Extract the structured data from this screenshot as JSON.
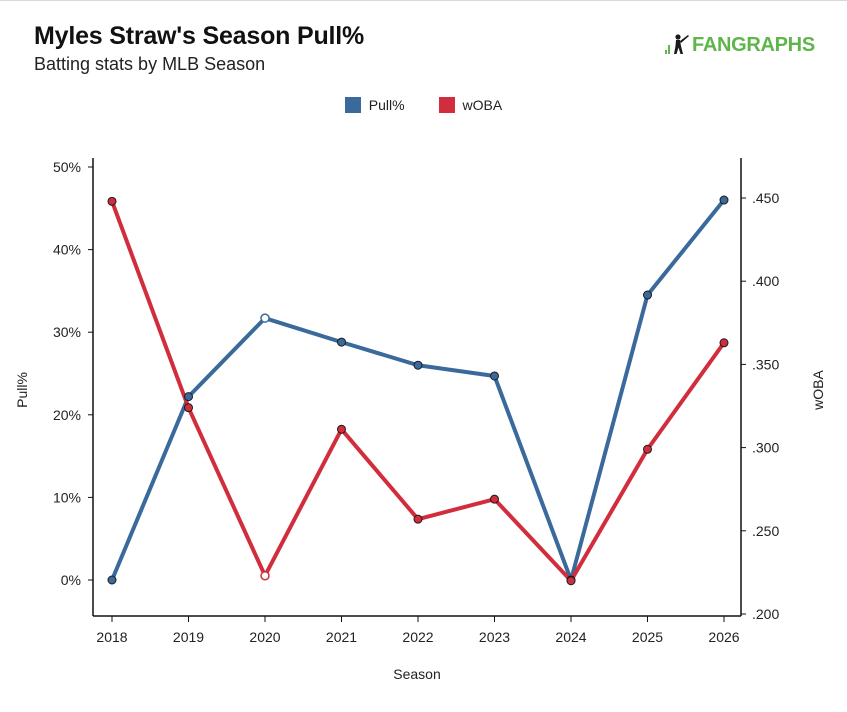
{
  "header": {
    "title": "Myles Straw's Season Pull%",
    "subtitle": "Batting stats by MLB Season",
    "logo_text": "FANGRAPHS"
  },
  "colors": {
    "pull": "#3a6a9b",
    "woba": "#d22d3c",
    "logo": "#5fb54b"
  },
  "chart_data": {
    "type": "line",
    "xlabel": "Season",
    "ylabel_left": "Pull%",
    "ylabel_right": "wOBA",
    "categories": [
      "2018",
      "2019",
      "2020",
      "2021",
      "2022",
      "2023",
      "2024",
      "2025",
      "2026"
    ],
    "left_axis": {
      "range": [
        -0.048,
        0.5
      ],
      "ticks": [
        0,
        0.1,
        0.2,
        0.3,
        0.4,
        0.5
      ],
      "tick_labels": [
        "0%",
        "10%",
        "20%",
        "30%",
        "40%",
        "50%"
      ]
    },
    "right_axis": {
      "range": [
        0.2,
        0.4715
      ],
      "ticks": [
        0.2,
        0.25,
        0.3,
        0.35,
        0.4,
        0.45
      ],
      "tick_labels": [
        ".200",
        ".250",
        ".300",
        ".350",
        ".400",
        ".450"
      ]
    },
    "series": [
      {
        "name": "Pull%",
        "axis": "left",
        "values": [
          0.0,
          0.222,
          0.317,
          0.288,
          0.26,
          0.247,
          0.0,
          0.345,
          0.46
        ],
        "hollow_points": [
          2
        ]
      },
      {
        "name": "wOBA",
        "axis": "right",
        "values": [
          0.448,
          0.324,
          0.223,
          0.311,
          0.257,
          0.269,
          0.22,
          0.299,
          0.363
        ],
        "hollow_points": [
          2
        ]
      }
    ],
    "legend_position": "top-center",
    "grid": false
  }
}
